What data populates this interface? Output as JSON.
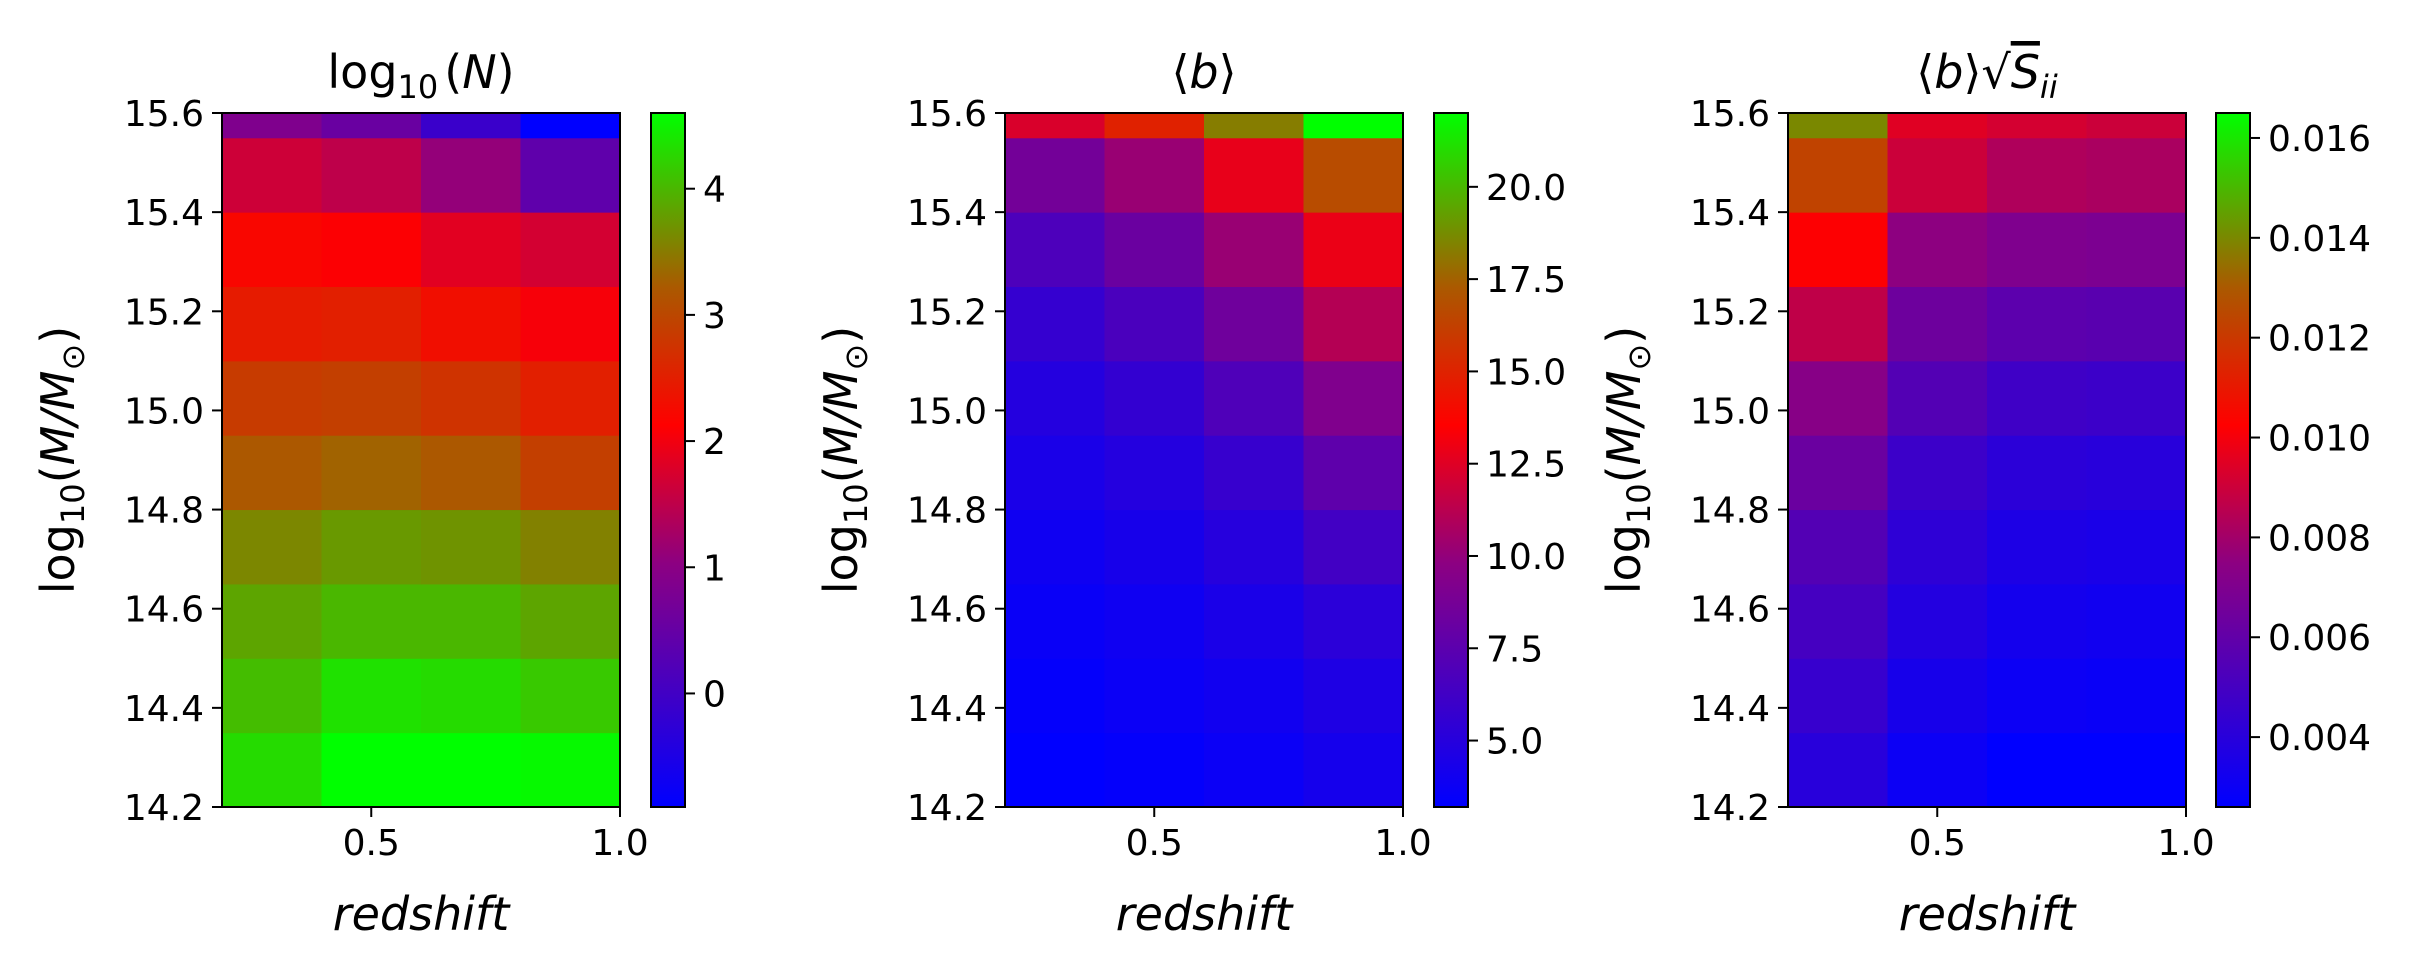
{
  "chart_data": [
    {
      "type": "heatmap",
      "title": "log10(N)",
      "title_parts": {
        "main": "log",
        "sub": "10",
        "rest_pre": "(",
        "var": "N",
        "rest_post": ")"
      },
      "xlabel": "redshift",
      "ylabel_parts": {
        "main": "log",
        "sub": "10",
        "pre": "(",
        "var": "M/M",
        "sun": "⊙",
        "post": ")"
      },
      "x_edges": [
        0.2,
        0.4,
        0.6,
        0.8,
        1.0
      ],
      "y_edges": [
        14.2,
        14.35,
        14.5,
        14.65,
        14.8,
        14.95,
        15.1,
        15.25,
        15.4,
        15.55,
        15.7
      ],
      "xlim": [
        0.2,
        1.0
      ],
      "ylim": [
        14.2,
        15.6
      ],
      "xticks": [
        "0.5",
        "1.0"
      ],
      "yticks": [
        "14.2",
        "14.4",
        "14.6",
        "14.8",
        "15.0",
        "15.2",
        "15.4",
        "15.6"
      ],
      "cbar_range": [
        -0.9,
        4.6
      ],
      "cbar_ticks": [
        "0",
        "1",
        "2",
        "3",
        "4"
      ],
      "values": [
        [
          4.3,
          4.6,
          4.6,
          4.55
        ],
        [
          4.05,
          4.35,
          4.3,
          4.15
        ],
        [
          3.85,
          4.0,
          4.0,
          3.85
        ],
        [
          3.6,
          3.75,
          3.7,
          3.55
        ],
        [
          3.2,
          3.3,
          3.2,
          2.9
        ],
        [
          2.85,
          2.9,
          2.75,
          2.5
        ],
        [
          2.45,
          2.5,
          2.3,
          2.05
        ],
        [
          2.2,
          2.1,
          1.85,
          1.7
        ],
        [
          1.65,
          1.5,
          1.1,
          0.4
        ],
        [
          0.85,
          0.55,
          -0.1,
          -0.9
        ]
      ]
    },
    {
      "type": "heatmap",
      "title": "⟨b⟩",
      "title_parts": {
        "pre": "⟨",
        "var": "b",
        "post": "⟩"
      },
      "xlabel": "redshift",
      "ylabel_parts": {
        "main": "log",
        "sub": "10",
        "pre": "(",
        "var": "M/M",
        "sun": "⊙",
        "post": ")"
      },
      "x_edges": [
        0.2,
        0.4,
        0.6,
        0.8,
        1.0
      ],
      "y_edges": [
        14.2,
        14.35,
        14.5,
        14.65,
        14.8,
        14.95,
        15.1,
        15.25,
        15.4,
        15.55,
        15.7
      ],
      "xlim": [
        0.2,
        1.0
      ],
      "ylim": [
        14.2,
        15.6
      ],
      "xticks": [
        "0.5",
        "1.0"
      ],
      "yticks": [
        "14.2",
        "14.4",
        "14.6",
        "14.8",
        "15.0",
        "15.2",
        "15.4",
        "15.6"
      ],
      "cbar_range": [
        3.2,
        22.0
      ],
      "cbar_ticks": [
        "5.0",
        "7.5",
        "10.0",
        "12.5",
        "15.0",
        "17.5",
        "20.0"
      ],
      "values": [
        [
          3.2,
          3.4,
          3.7,
          4.2
        ],
        [
          3.4,
          3.7,
          4.0,
          4.6
        ],
        [
          3.6,
          3.9,
          4.4,
          5.2
        ],
        [
          3.9,
          4.3,
          5.0,
          6.3
        ],
        [
          4.4,
          4.9,
          5.8,
          7.6
        ],
        [
          4.9,
          5.6,
          6.9,
          9.2
        ],
        [
          5.7,
          6.7,
          8.4,
          11.1
        ],
        [
          6.8,
          8.2,
          10.2,
          12.9
        ],
        [
          8.6,
          10.2,
          12.8,
          16.7
        ],
        [
          12.3,
          14.9,
          18.3,
          22.0
        ]
      ]
    },
    {
      "type": "heatmap",
      "title": "⟨b⟩√S_ii",
      "title_parts": {
        "pre": "⟨",
        "var": "b",
        "post": "⟩",
        "sqrt": "√",
        "svar": "S",
        "ssub": "ii"
      },
      "xlabel": "redshift",
      "ylabel_parts": {
        "main": "log",
        "sub": "10",
        "pre": "(",
        "var": "M/M",
        "sun": "⊙",
        "post": ")"
      },
      "x_edges": [
        0.2,
        0.4,
        0.6,
        0.8,
        1.0
      ],
      "y_edges": [
        14.2,
        14.35,
        14.5,
        14.65,
        14.8,
        14.95,
        15.1,
        15.25,
        15.4,
        15.55,
        15.7
      ],
      "xlim": [
        0.2,
        1.0
      ],
      "ylim": [
        14.2,
        15.6
      ],
      "xticks": [
        "0.5",
        "1.0"
      ],
      "yticks": [
        "14.2",
        "14.4",
        "14.6",
        "14.8",
        "15.0",
        "15.2",
        "15.4",
        "15.6"
      ],
      "cbar_range": [
        0.0026,
        0.0165
      ],
      "cbar_ticks": [
        "0.004",
        "0.006",
        "0.008",
        "0.010",
        "0.012",
        "0.014",
        "0.016"
      ],
      "values": [
        [
          0.004,
          0.003,
          0.0026,
          0.0026
        ],
        [
          0.0045,
          0.0034,
          0.003,
          0.0029
        ],
        [
          0.005,
          0.0038,
          0.0033,
          0.0032
        ],
        [
          0.0055,
          0.0042,
          0.0036,
          0.0035
        ],
        [
          0.0063,
          0.0047,
          0.0041,
          0.004
        ],
        [
          0.0073,
          0.0055,
          0.0048,
          0.0047
        ],
        [
          0.0087,
          0.0064,
          0.0058,
          0.0057
        ],
        [
          0.0102,
          0.0075,
          0.007,
          0.0069
        ],
        [
          0.0123,
          0.009,
          0.0083,
          0.0082
        ],
        [
          0.014,
          0.0095,
          0.0092,
          0.009
        ]
      ]
    }
  ]
}
